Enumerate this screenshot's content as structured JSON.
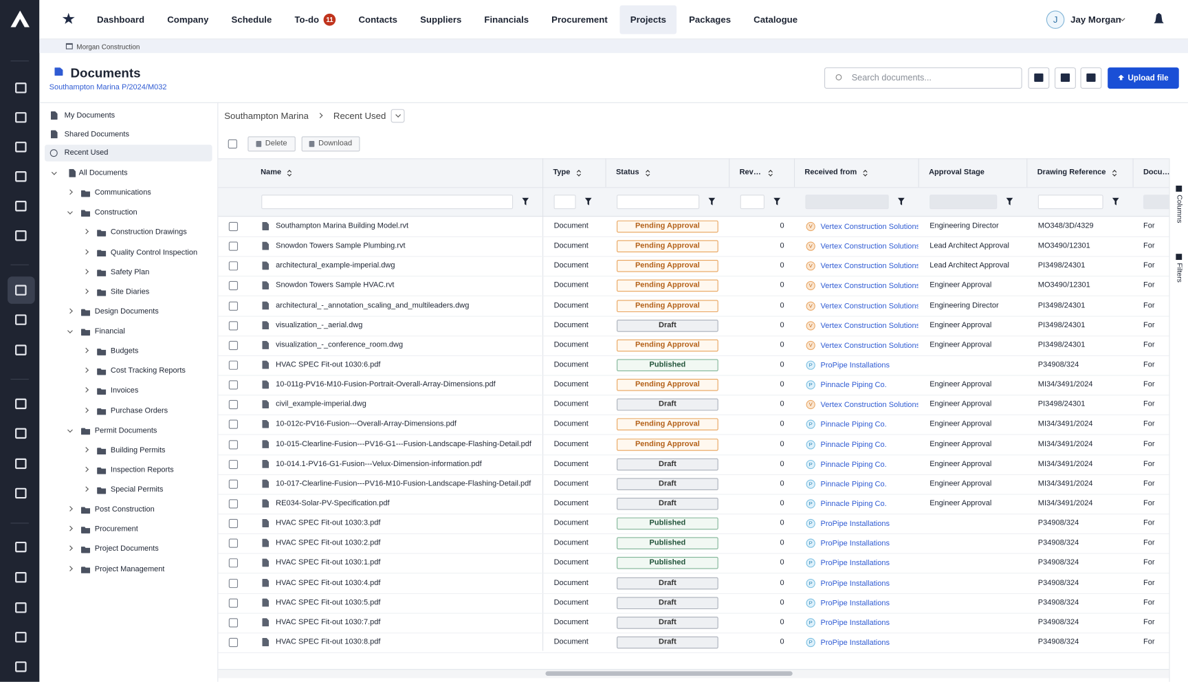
{
  "nav": {
    "items": [
      {
        "label": "Dashboard"
      },
      {
        "label": "Company"
      },
      {
        "label": "Schedule"
      },
      {
        "label": "To-do",
        "badge": "11"
      },
      {
        "label": "Contacts"
      },
      {
        "label": "Suppliers"
      },
      {
        "label": "Financials"
      },
      {
        "label": "Procurement"
      },
      {
        "label": "Projects"
      },
      {
        "label": "Packages"
      },
      {
        "label": "Catalogue"
      }
    ],
    "active_index": 8,
    "user_initial": "J",
    "user_name": "Jay Morgan"
  },
  "breadcrumb": "Morgan Construction",
  "header": {
    "title": "Documents",
    "subtitle": "Southampton Marina P/2024/M032",
    "search_placeholder": "Search documents...",
    "upload_button": "Upload file"
  },
  "tree": {
    "selected_index": 2,
    "items": [
      {
        "label": "My Documents",
        "depth": 0,
        "icon": "file"
      },
      {
        "label": "Shared Documents",
        "depth": 0,
        "icon": "shared"
      },
      {
        "label": "Recent Used",
        "depth": 0,
        "icon": "clock"
      },
      {
        "label": "All Documents",
        "depth": 0,
        "icon": "files",
        "open": true
      },
      {
        "label": "Communications",
        "depth": 1,
        "icon": "folder",
        "open": false
      },
      {
        "label": "Construction",
        "depth": 1,
        "icon": "folder",
        "open": true
      },
      {
        "label": "Construction Drawings",
        "depth": 2,
        "icon": "folder",
        "open": false
      },
      {
        "label": "Quality Control Inspection",
        "depth": 2,
        "icon": "folder",
        "open": false
      },
      {
        "label": "Safety Plan",
        "depth": 2,
        "icon": "folder",
        "open": false
      },
      {
        "label": "Site Diaries",
        "depth": 2,
        "icon": "folder",
        "open": false
      },
      {
        "label": "Design Documents",
        "depth": 1,
        "icon": "folder",
        "open": false
      },
      {
        "label": "Financial",
        "depth": 1,
        "icon": "folder",
        "open": true
      },
      {
        "label": "Budgets",
        "depth": 2,
        "icon": "folder",
        "open": false
      },
      {
        "label": "Cost Tracking Reports",
        "depth": 2,
        "icon": "folder",
        "open": false
      },
      {
        "label": "Invoices",
        "depth": 2,
        "icon": "folder",
        "open": false
      },
      {
        "label": "Purchase Orders",
        "depth": 2,
        "icon": "folder",
        "open": false
      },
      {
        "label": "Permit Documents",
        "depth": 1,
        "icon": "folder",
        "open": true
      },
      {
        "label": "Building Permits",
        "depth": 2,
        "icon": "folder",
        "open": false
      },
      {
        "label": "Inspection Reports",
        "depth": 2,
        "icon": "folder",
        "open": false
      },
      {
        "label": "Special Permits",
        "depth": 2,
        "icon": "folder",
        "open": false
      },
      {
        "label": "Post Construction",
        "depth": 1,
        "icon": "folder",
        "open": false
      },
      {
        "label": "Procurement",
        "depth": 1,
        "icon": "folder",
        "open": false
      },
      {
        "label": "Project Documents",
        "depth": 1,
        "icon": "folder",
        "open": false
      },
      {
        "label": "Project Management",
        "depth": 1,
        "icon": "folder",
        "open": false
      }
    ]
  },
  "path": [
    "Southampton Marina",
    "Recent Used"
  ],
  "toolbar": [
    "Delete",
    "Download"
  ],
  "table": {
    "columns": [
      {
        "label": "Name",
        "sortable": true
      },
      {
        "label": "Type",
        "sortable": true
      },
      {
        "label": "Status",
        "sortable": true
      },
      {
        "label": "Revision",
        "sortable": true
      },
      {
        "label": "Received from",
        "sortable": true
      },
      {
        "label": "Approval Stage",
        "sortable": false
      },
      {
        "label": "Drawing Reference",
        "sortable": true
      },
      {
        "label": "Document",
        "sortable": false
      }
    ],
    "rows": [
      [
        "Southampton Marina Building Model.rvt",
        "Document",
        "Pending Approval",
        "0",
        "Vertex Construction Solutions",
        "V",
        "Engineering Director",
        "MO348/3D/4329",
        "For"
      ],
      [
        "Snowdon Towers Sample Plumbing.rvt",
        "Document",
        "Pending Approval",
        "0",
        "Vertex Construction Solutions",
        "V",
        "Lead Architect Approval",
        "MO3490/12301",
        "For"
      ],
      [
        "architectural_example-imperial.dwg",
        "Document",
        "Pending Approval",
        "0",
        "Vertex Construction Solutions",
        "V",
        "Lead Architect Approval",
        "PI3498/24301",
        "For"
      ],
      [
        "Snowdon Towers Sample HVAC.rvt",
        "Document",
        "Pending Approval",
        "0",
        "Vertex Construction Solutions",
        "V",
        "Engineer Approval",
        "MO3490/12301",
        "For"
      ],
      [
        "architectural_-_annotation_scaling_and_multileaders.dwg",
        "Document",
        "Pending Approval",
        "0",
        "Vertex Construction Solutions",
        "V",
        "Engineering Director",
        "PI3498/24301",
        "For"
      ],
      [
        "visualization_-_aerial.dwg",
        "Document",
        "Draft",
        "0",
        "Vertex Construction Solutions",
        "V",
        "Engineer Approval",
        "PI3498/24301",
        "For"
      ],
      [
        "visualization_-_conference_room.dwg",
        "Document",
        "Pending Approval",
        "0",
        "Vertex Construction Solutions",
        "V",
        "Engineer Approval",
        "PI3498/24301",
        "For"
      ],
      [
        "HVAC SPEC Fit-out 1030:6.pdf",
        "Document",
        "Published",
        "0",
        "ProPipe Installations",
        "P",
        "",
        "P34908/324",
        "For"
      ],
      [
        "10-011g-PV16-M10-Fusion-Portrait-Overall-Array-Dimensions.pdf",
        "Document",
        "Pending Approval",
        "0",
        "Pinnacle Piping Co.",
        "P",
        "Engineer Approval",
        "MI34/3491/2024",
        "For"
      ],
      [
        "civil_example-imperial.dwg",
        "Document",
        "Draft",
        "0",
        "Vertex Construction Solutions",
        "V",
        "Engineer Approval",
        "PI3498/24301",
        "For"
      ],
      [
        "10-012c-PV16-Fusion---Overall-Array-Dimensions.pdf",
        "Document",
        "Pending Approval",
        "0",
        "Pinnacle Piping Co.",
        "P",
        "Engineer Approval",
        "MI34/3491/2024",
        "For"
      ],
      [
        "10-015-Clearline-Fusion---PV16-G1---Fusion-Landscape-Flashing-Detail.pdf",
        "Document",
        "Pending Approval",
        "0",
        "Pinnacle Piping Co.",
        "P",
        "Engineer Approval",
        "MI34/3491/2024",
        "For"
      ],
      [
        "10-014.1-PV16-G1-Fusion---Velux-Dimension-information.pdf",
        "Document",
        "Draft",
        "0",
        "Pinnacle Piping Co.",
        "P",
        "Engineer Approval",
        "MI34/3491/2024",
        "For"
      ],
      [
        "10-017-Clearline-Fusion---PV16-M10-Fusion-Landscape-Flashing-Detail.pdf",
        "Document",
        "Draft",
        "0",
        "Pinnacle Piping Co.",
        "P",
        "Engineer Approval",
        "MI34/3491/2024",
        "For"
      ],
      [
        "RE034-Solar-PV-Specification.pdf",
        "Document",
        "Draft",
        "0",
        "Pinnacle Piping Co.",
        "P",
        "Engineer Approval",
        "MI34/3491/2024",
        "For"
      ],
      [
        "HVAC SPEC Fit-out 1030:3.pdf",
        "Document",
        "Published",
        "0",
        "ProPipe Installations",
        "P",
        "",
        "P34908/324",
        "For"
      ],
      [
        "HVAC SPEC Fit-out 1030:2.pdf",
        "Document",
        "Published",
        "0",
        "ProPipe Installations",
        "P",
        "",
        "P34908/324",
        "For"
      ],
      [
        "HVAC SPEC Fit-out 1030:1.pdf",
        "Document",
        "Published",
        "0",
        "ProPipe Installations",
        "P",
        "",
        "P34908/324",
        "For"
      ],
      [
        "HVAC SPEC Fit-out 1030:4.pdf",
        "Document",
        "Draft",
        "0",
        "ProPipe Installations",
        "P",
        "",
        "P34908/324",
        "For"
      ],
      [
        "HVAC SPEC Fit-out 1030:5.pdf",
        "Document",
        "Draft",
        "0",
        "ProPipe Installations",
        "P",
        "",
        "P34908/324",
        "For"
      ],
      [
        "HVAC SPEC Fit-out 1030:7.pdf",
        "Document",
        "Draft",
        "0",
        "ProPipe Installations",
        "P",
        "",
        "P34908/324",
        "For"
      ],
      [
        "HVAC SPEC Fit-out 1030:8.pdf",
        "Document",
        "Draft",
        "0",
        "ProPipe Installations",
        "P",
        "",
        "P34908/324",
        "For"
      ]
    ]
  },
  "side_panel": [
    "Columns",
    "Filters"
  ]
}
